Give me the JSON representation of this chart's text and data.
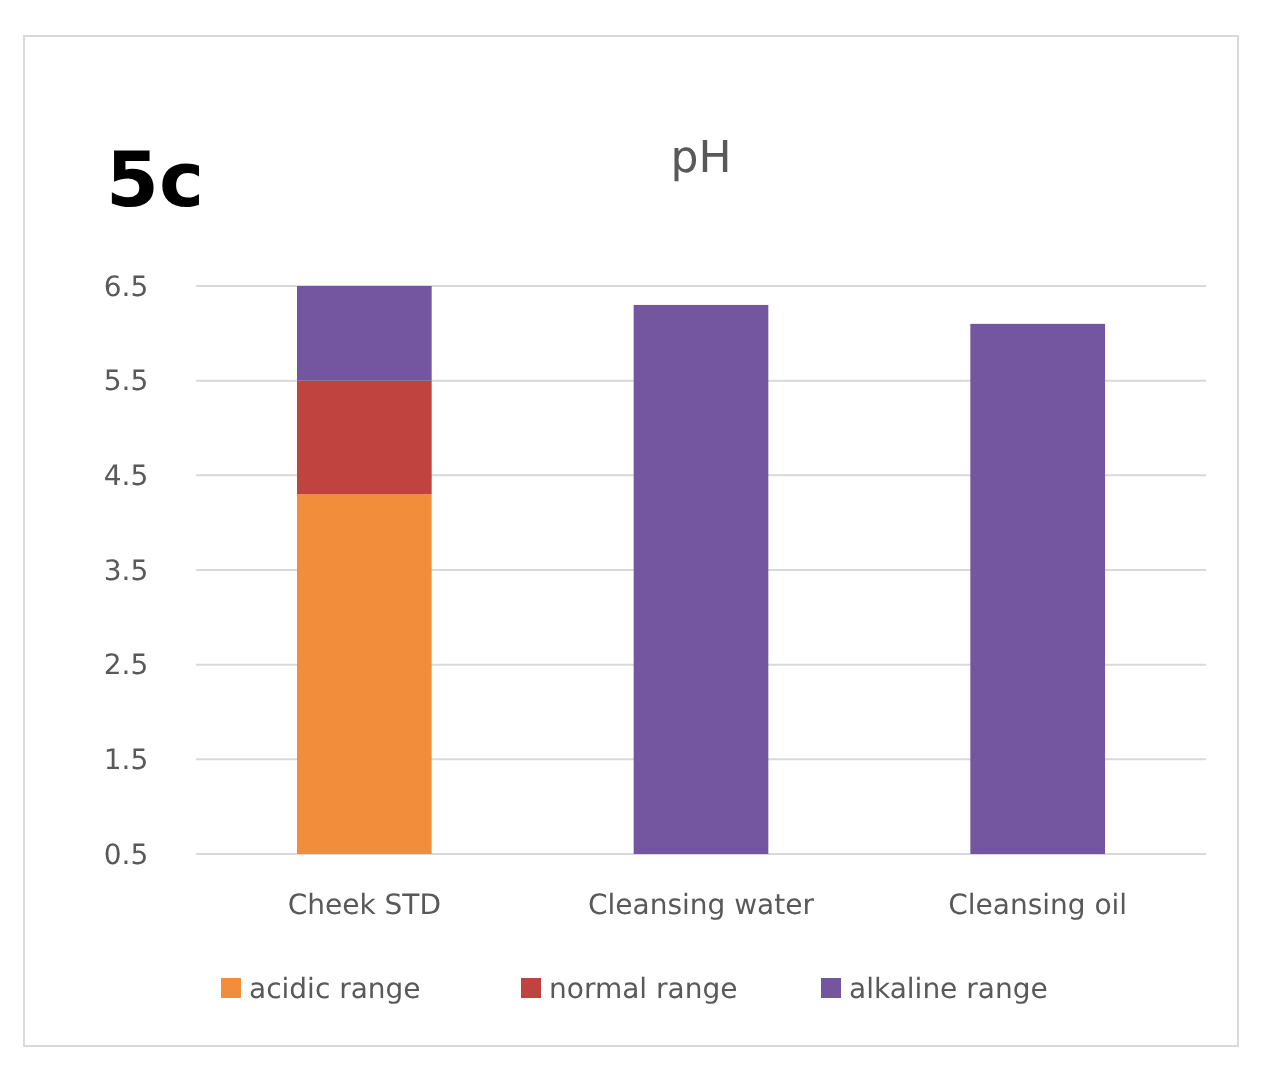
{
  "chart_data": {
    "type": "bar",
    "title": "pH",
    "annotations": [
      "5c"
    ],
    "categories": [
      "Cheek STD",
      "Cleansing water",
      "Cleansing oil"
    ],
    "stacked": true,
    "series": [
      {
        "name": "acidic range",
        "color": "#f28e3b",
        "values": [
          4.3,
          null,
          null
        ]
      },
      {
        "name": "normal range",
        "color": "#c0433f",
        "values": [
          1.2,
          null,
          null
        ]
      },
      {
        "name": "alkaline range",
        "color": "#7455a0",
        "values": [
          1.0,
          6.3,
          6.1
        ]
      }
    ],
    "ylim": [
      0.5,
      6.5
    ],
    "yticks": [
      0.5,
      1.5,
      2.5,
      3.5,
      4.5,
      5.5,
      6.5
    ],
    "grid": "y",
    "legend": "bottom"
  }
}
